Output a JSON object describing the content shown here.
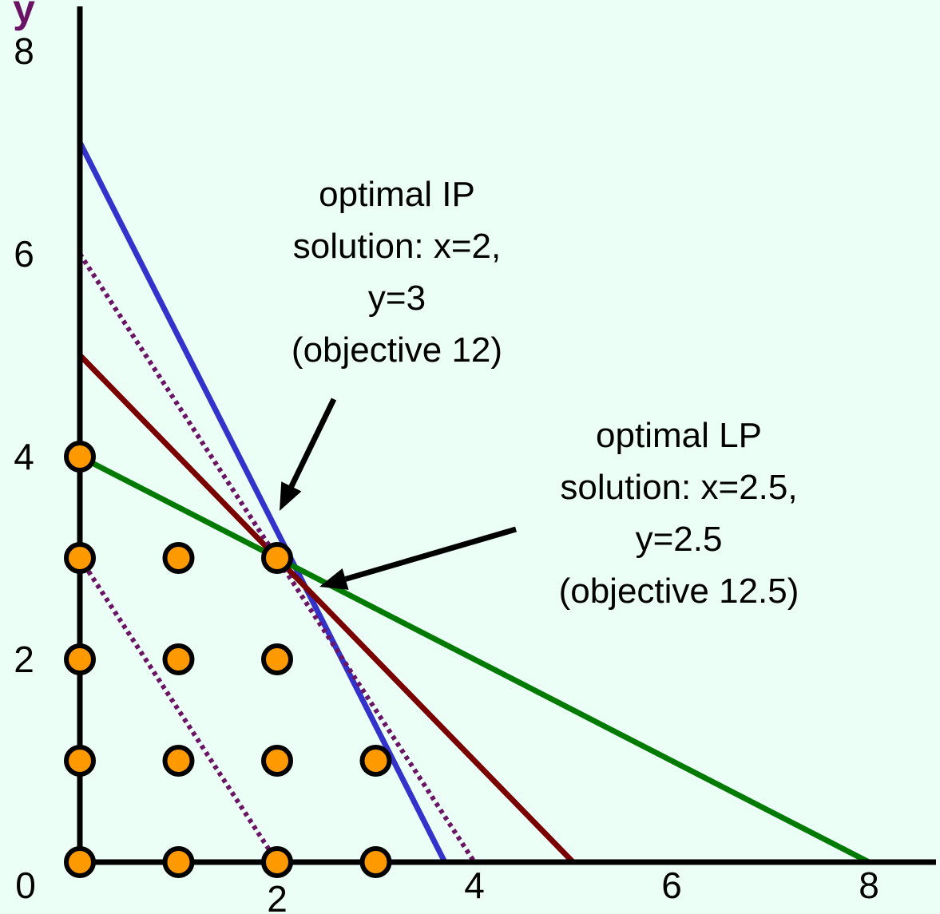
{
  "chart_data": {
    "type": "scatter",
    "title": "",
    "xlabel": "",
    "ylabel": "y",
    "xlim": [
      0,
      8.8
    ],
    "ylim": [
      0,
      8.8
    ],
    "x_ticks": [
      {
        "value": 0,
        "label": "0"
      },
      {
        "value": 2,
        "label": "2"
      },
      {
        "value": 4,
        "label": "4"
      },
      {
        "value": 6,
        "label": "6"
      },
      {
        "value": 8,
        "label": "8"
      }
    ],
    "y_ticks": [
      {
        "value": 2,
        "label": "2"
      },
      {
        "value": 4,
        "label": "4"
      },
      {
        "value": 6,
        "label": "6"
      },
      {
        "value": 8,
        "label": "8"
      }
    ],
    "grid": false,
    "points": [
      {
        "x": 0,
        "y": 0
      },
      {
        "x": 1,
        "y": 0
      },
      {
        "x": 2,
        "y": 0
      },
      {
        "x": 3,
        "y": 0
      },
      {
        "x": 0,
        "y": 1
      },
      {
        "x": 1,
        "y": 1
      },
      {
        "x": 2,
        "y": 1
      },
      {
        "x": 3,
        "y": 1
      },
      {
        "x": 0,
        "y": 2
      },
      {
        "x": 1,
        "y": 2
      },
      {
        "x": 2,
        "y": 2
      },
      {
        "x": 0,
        "y": 3
      },
      {
        "x": 1,
        "y": 3
      },
      {
        "x": 2,
        "y": 3
      },
      {
        "x": 0,
        "y": 4
      }
    ],
    "lines": [
      {
        "name": "constraint-blue",
        "color": "#3333cc",
        "style": "solid",
        "from": [
          0,
          7.1
        ],
        "to": [
          3.7,
          0
        ]
      },
      {
        "name": "constraint-red",
        "color": "#7a0000",
        "style": "solid",
        "from": [
          0,
          5
        ],
        "to": [
          5,
          0
        ]
      },
      {
        "name": "constraint-green",
        "color": "#007a00",
        "style": "solid",
        "from": [
          0,
          4
        ],
        "to": [
          8,
          0
        ]
      },
      {
        "name": "objective-high",
        "color": "#6b1466",
        "style": "dotted",
        "from": [
          0,
          6
        ],
        "to": [
          4,
          0
        ]
      },
      {
        "name": "objective-low",
        "color": "#6b1466",
        "style": "dotted",
        "from": [
          0,
          3
        ],
        "to": [
          2,
          0
        ]
      }
    ],
    "annotations": [
      {
        "name": "ip-annotation",
        "lines": [
          "optimal IP",
          "solution: x=2,",
          "y=3",
          "(objective 12)"
        ],
        "points_to": [
          2,
          3
        ]
      },
      {
        "name": "lp-annotation",
        "lines": [
          "optimal LP",
          "solution: x=2.5,",
          "y=2.5",
          "(objective 12.5)"
        ],
        "points_to": [
          2.5,
          2.5
        ]
      }
    ],
    "colors": {
      "background": "#ebfff6",
      "axis": "#000000",
      "point_fill": "#ff9900",
      "point_stroke": "#000000",
      "ylabel": "#6b1466"
    }
  }
}
